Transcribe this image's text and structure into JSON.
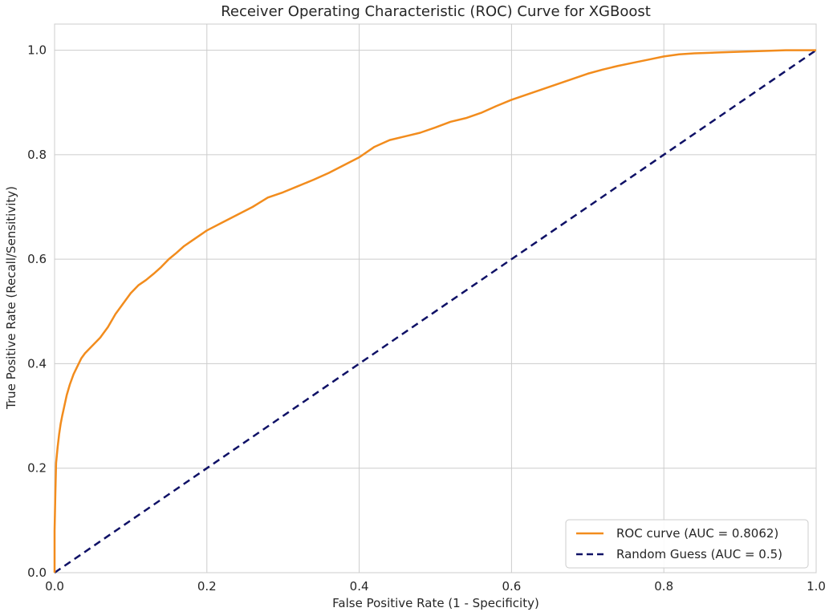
{
  "chart_data": {
    "type": "line",
    "title": "Receiver Operating Characteristic (ROC) Curve for XGBoost",
    "xlabel": "False Positive Rate (1 - Specificity)",
    "ylabel": "True Positive Rate (Recall/Sensitivity)",
    "xlim": [
      0.0,
      1.0
    ],
    "ylim": [
      0.0,
      1.05
    ],
    "xticks": [
      0.0,
      0.2,
      0.4,
      0.6,
      0.8,
      1.0
    ],
    "yticks": [
      0.0,
      0.2,
      0.4,
      0.6,
      0.8,
      1.0
    ],
    "xtick_labels": [
      "0.0",
      "0.2",
      "0.4",
      "0.6",
      "0.8",
      "1.0"
    ],
    "ytick_labels": [
      "0.0",
      "0.2",
      "0.4",
      "0.6",
      "0.8",
      "1.0"
    ],
    "grid": true,
    "legend_position": "lower-right",
    "series": [
      {
        "name": "ROC curve (AUC = 0.8062)",
        "color": "#f28c1d",
        "style": "solid",
        "x": [
          0.0,
          0.0,
          0.001,
          0.002,
          0.004,
          0.006,
          0.008,
          0.01,
          0.013,
          0.016,
          0.02,
          0.025,
          0.03,
          0.035,
          0.04,
          0.05,
          0.06,
          0.07,
          0.08,
          0.09,
          0.1,
          0.11,
          0.12,
          0.13,
          0.14,
          0.15,
          0.16,
          0.17,
          0.18,
          0.19,
          0.2,
          0.22,
          0.24,
          0.26,
          0.28,
          0.3,
          0.32,
          0.34,
          0.36,
          0.38,
          0.4,
          0.42,
          0.44,
          0.46,
          0.48,
          0.5,
          0.52,
          0.54,
          0.56,
          0.58,
          0.6,
          0.62,
          0.64,
          0.66,
          0.68,
          0.7,
          0.72,
          0.74,
          0.76,
          0.78,
          0.8,
          0.82,
          0.84,
          0.86,
          0.88,
          0.9,
          0.92,
          0.94,
          0.96,
          0.98,
          1.0
        ],
        "y": [
          0.0,
          0.08,
          0.15,
          0.21,
          0.24,
          0.265,
          0.285,
          0.3,
          0.32,
          0.34,
          0.36,
          0.38,
          0.395,
          0.41,
          0.42,
          0.435,
          0.45,
          0.47,
          0.495,
          0.515,
          0.535,
          0.55,
          0.56,
          0.572,
          0.585,
          0.6,
          0.612,
          0.625,
          0.635,
          0.645,
          0.655,
          0.67,
          0.685,
          0.7,
          0.718,
          0.728,
          0.74,
          0.752,
          0.765,
          0.78,
          0.795,
          0.815,
          0.828,
          0.835,
          0.842,
          0.852,
          0.863,
          0.87,
          0.88,
          0.893,
          0.905,
          0.915,
          0.925,
          0.935,
          0.945,
          0.955,
          0.963,
          0.97,
          0.976,
          0.982,
          0.988,
          0.992,
          0.994,
          0.995,
          0.996,
          0.997,
          0.998,
          0.999,
          1.0,
          1.0,
          1.0
        ]
      },
      {
        "name": "Random Guess (AUC = 0.5)",
        "color": "#0f1166",
        "style": "dashed",
        "x": [
          0.0,
          1.0
        ],
        "y": [
          0.0,
          1.0
        ]
      }
    ]
  }
}
